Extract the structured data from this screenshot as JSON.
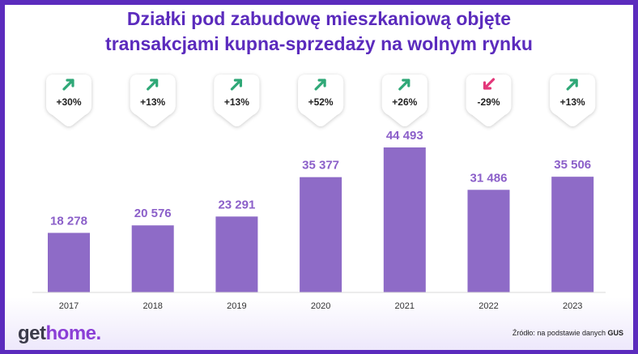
{
  "title_lines": [
    "Działki pod zabudowę mieszkaniową objęte",
    "transakcjami kupna-sprzedaży na wolnym rynku"
  ],
  "chart_data": {
    "type": "bar",
    "title": "Działki pod zabudowę mieszkaniową objęte transakcjami kupna-sprzedaży na wolnym rynku",
    "categories": [
      "2017",
      "2018",
      "2019",
      "2020",
      "2021",
      "2022",
      "2023"
    ],
    "values": [
      18278,
      20576,
      23291,
      35377,
      44493,
      31486,
      35506
    ],
    "value_labels": [
      "18 278",
      "20 576",
      "23 291",
      "35 377",
      "44 493",
      "31 486",
      "35 506"
    ],
    "changes": [
      "+30%",
      "+13%",
      "+13%",
      "+52%",
      "+26%",
      "-29%",
      "+13%"
    ],
    "change_directions": [
      "up",
      "up",
      "up",
      "up",
      "up",
      "down",
      "up"
    ],
    "ylim": [
      0,
      44493
    ],
    "xlabel": "",
    "ylabel": "",
    "colors": {
      "bar": "#8e6bc7",
      "value_text": "#8b5fc9",
      "up": "#2fa877",
      "down": "#e3387a",
      "title": "#5b2bbd"
    }
  },
  "logo": {
    "part1": "get",
    "part2": "home."
  },
  "source": {
    "prefix": "Źródło: na podstawie danych ",
    "bold": "GUS"
  }
}
